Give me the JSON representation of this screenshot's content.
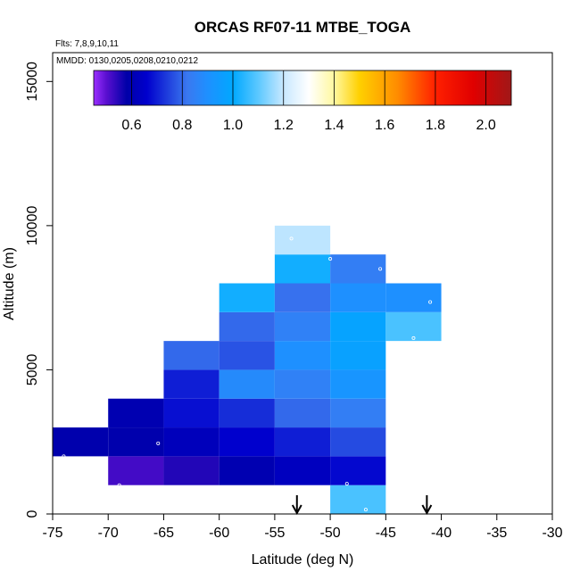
{
  "chart_data": {
    "type": "heatmap",
    "title": "ORCAS RF07-11 MTBE_TOGA",
    "notes": [
      "Flts: 7,8,9,10,11",
      "MMDD: 0130,0205,0208,0210,0212"
    ],
    "xlabel": "Latitude (deg N)",
    "ylabel": "Altitude (m)",
    "xlim": [
      -75,
      -30
    ],
    "ylim": [
      0,
      16000
    ],
    "x_ticks": [
      -75,
      -70,
      -65,
      -60,
      -55,
      -50,
      -45,
      -40,
      -35,
      -30
    ],
    "y_ticks": [
      0,
      5000,
      10000,
      15000
    ],
    "x_bin_width": 5,
    "y_bin_height": 1000,
    "colorbar": {
      "min": 0.45,
      "max": 2.1,
      "ticks": [
        0.6,
        0.8,
        1.0,
        1.2,
        1.4,
        1.6,
        1.8,
        2.0
      ],
      "tick_labels": [
        "0.6",
        "0.8",
        "1.0",
        "1.2",
        "1.4",
        "1.6",
        "1.8",
        "2.0"
      ],
      "stops": [
        {
          "v": 0.45,
          "c": "#9b30ff"
        },
        {
          "v": 0.5,
          "c": "#5a0fd0"
        },
        {
          "v": 0.58,
          "c": "#0000a8"
        },
        {
          "v": 0.66,
          "c": "#0000cd"
        },
        {
          "v": 0.74,
          "c": "#1e3cdc"
        },
        {
          "v": 0.82,
          "c": "#3a78f0"
        },
        {
          "v": 0.9,
          "c": "#1e90ff"
        },
        {
          "v": 1.0,
          "c": "#00a8ff"
        },
        {
          "v": 1.1,
          "c": "#5cc8ff"
        },
        {
          "v": 1.2,
          "c": "#c8e8ff"
        },
        {
          "v": 1.3,
          "c": "#ffffff"
        },
        {
          "v": 1.4,
          "c": "#fff8a0"
        },
        {
          "v": 1.5,
          "c": "#ffd000"
        },
        {
          "v": 1.65,
          "c": "#ff8c00"
        },
        {
          "v": 1.8,
          "c": "#ff2000"
        },
        {
          "v": 1.95,
          "c": "#e00000"
        },
        {
          "v": 2.1,
          "c": "#a01818"
        }
      ]
    },
    "cells": [
      {
        "lat": -75,
        "alt": 2000,
        "value": 0.59
      },
      {
        "lat": -70,
        "alt": 2000,
        "value": 0.59
      },
      {
        "lat": -70,
        "alt": 1000,
        "value": 0.52
      },
      {
        "lat": -70,
        "alt": 3000,
        "value": 0.6
      },
      {
        "lat": -65,
        "alt": 1000,
        "value": 0.55
      },
      {
        "lat": -65,
        "alt": 2000,
        "value": 0.62
      },
      {
        "lat": -65,
        "alt": 3000,
        "value": 0.68
      },
      {
        "lat": -65,
        "alt": 4000,
        "value": 0.7
      },
      {
        "lat": -65,
        "alt": 5000,
        "value": 0.8
      },
      {
        "lat": -60,
        "alt": 1000,
        "value": 0.6
      },
      {
        "lat": -60,
        "alt": 2000,
        "value": 0.66
      },
      {
        "lat": -60,
        "alt": 3000,
        "value": 0.72
      },
      {
        "lat": -60,
        "alt": 4000,
        "value": 0.88
      },
      {
        "lat": -60,
        "alt": 5000,
        "value": 0.77
      },
      {
        "lat": -60,
        "alt": 6000,
        "value": 0.8
      },
      {
        "lat": -60,
        "alt": 7000,
        "value": 1.02
      },
      {
        "lat": -55,
        "alt": 1000,
        "value": 0.63
      },
      {
        "lat": -55,
        "alt": 2000,
        "value": 0.7
      },
      {
        "lat": -55,
        "alt": 3000,
        "value": 0.8
      },
      {
        "lat": -55,
        "alt": 4000,
        "value": 0.85
      },
      {
        "lat": -55,
        "alt": 5000,
        "value": 0.9
      },
      {
        "lat": -55,
        "alt": 6000,
        "value": 0.85
      },
      {
        "lat": -55,
        "alt": 7000,
        "value": 0.81
      },
      {
        "lat": -55,
        "alt": 8000,
        "value": 1.02
      },
      {
        "lat": -55,
        "alt": 9000,
        "value": 1.19
      },
      {
        "lat": -50,
        "alt": 0,
        "value": 1.08
      },
      {
        "lat": -50,
        "alt": 1000,
        "value": 0.67
      },
      {
        "lat": -50,
        "alt": 2000,
        "value": 0.76
      },
      {
        "lat": -50,
        "alt": 3000,
        "value": 0.84
      },
      {
        "lat": -50,
        "alt": 4000,
        "value": 0.92
      },
      {
        "lat": -50,
        "alt": 5000,
        "value": 0.97
      },
      {
        "lat": -50,
        "alt": 6000,
        "value": 0.98
      },
      {
        "lat": -50,
        "alt": 7000,
        "value": 0.9
      },
      {
        "lat": -50,
        "alt": 8000,
        "value": 0.84
      },
      {
        "lat": -45,
        "alt": 6000,
        "value": 1.08
      },
      {
        "lat": -45,
        "alt": 7000,
        "value": 0.9
      }
    ],
    "points": [
      {
        "lat": -74.0,
        "alt": 2000
      },
      {
        "lat": -69.0,
        "alt": 1000
      },
      {
        "lat": -65.5,
        "alt": 2450
      },
      {
        "lat": -53.5,
        "alt": 9550
      },
      {
        "lat": -50.0,
        "alt": 8850
      },
      {
        "lat": -48.5,
        "alt": 1050
      },
      {
        "lat": -46.8,
        "alt": 150
      },
      {
        "lat": -45.5,
        "alt": 8500
      },
      {
        "lat": -41.0,
        "alt": 7350
      },
      {
        "lat": -42.5,
        "alt": 6100
      }
    ],
    "arrows_lat": [
      -53.0,
      -41.3
    ]
  }
}
